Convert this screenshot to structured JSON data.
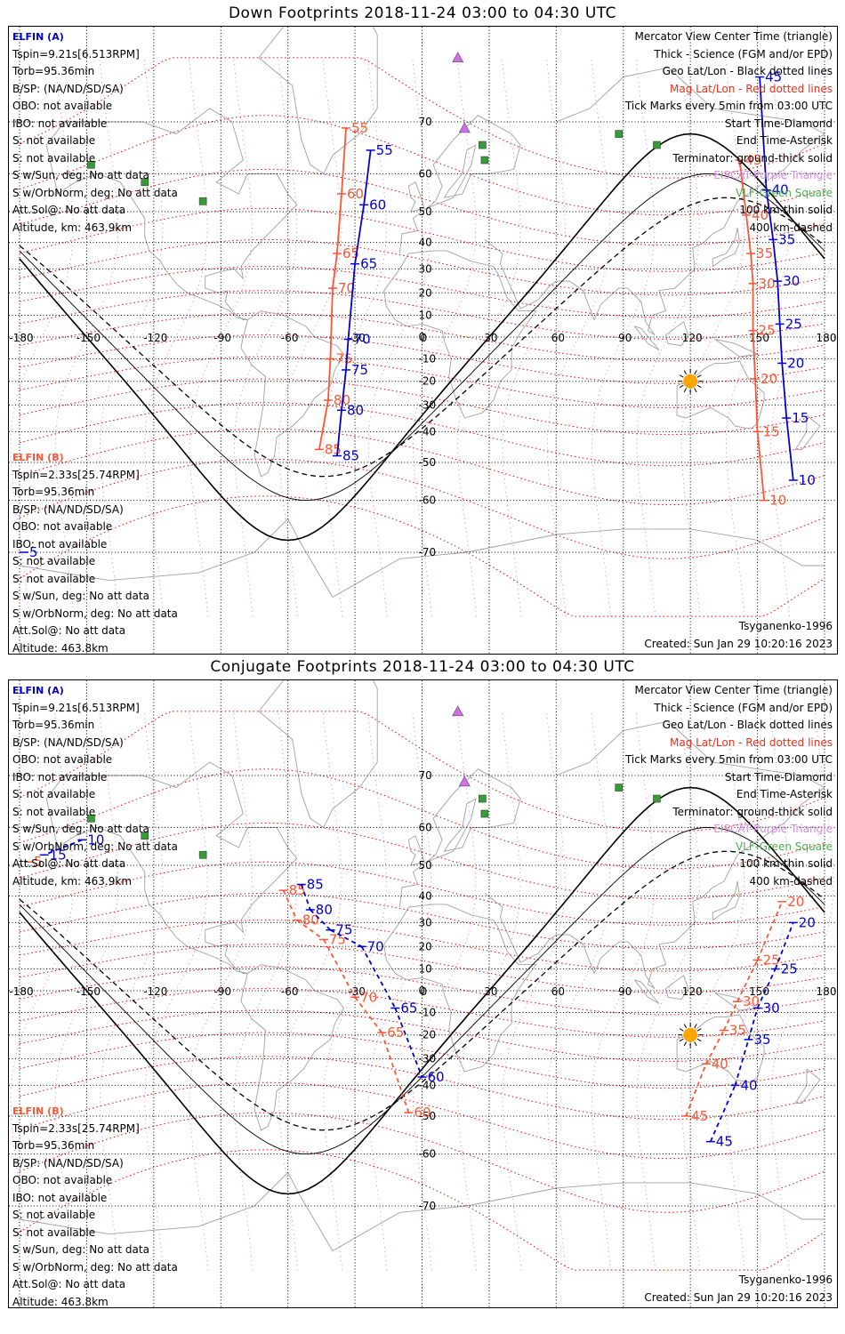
{
  "panels": [
    {
      "title": "Down Footprints 2018-11-24 03:00 to 04:30 UTC",
      "elfin_a": {
        "header": "ELFIN (A)",
        "lines": [
          "Tspin=9.21s[6.513RPM]",
          "Torb=95.36min",
          "B/SP: (NA/ND/SD/SA)",
          "OBO: not available",
          "IBO: not available",
          "S: not available",
          "S: not available",
          "S w/Sun, deg: No att data",
          "S w/OrbNorm, deg: No att data",
          "Att.Sol@: No att data",
          "Altitude, km: 463.9km"
        ]
      },
      "elfin_b": {
        "header": "ELFIN (B)",
        "lines": [
          "Tspin=2.33s[25.74RPM]",
          "Torb=95.36min",
          "B/SP: (NA/ND/SD/SA)",
          "OBO: not available",
          "IBO: not available",
          "S: not available",
          "S: not available",
          "S w/Sun, deg: No att data",
          "S w/OrbNorm, deg: No att data",
          "Att.Sol@: No att data",
          "Altitude: 463.8km"
        ]
      },
      "model": "Tsyganenko-1996",
      "created": "Created: Sun Jan 29 10:20:16 2023"
    },
    {
      "title": "Conjugate Footprints 2018-11-24 03:00 to 04:30 UTC",
      "elfin_a": {
        "header": "ELFIN (A)",
        "lines": [
          "Tspin=9.21s[6.513RPM]",
          "Torb=95.36min",
          "B/SP: (NA/ND/SD/SA)",
          "OBO: not available",
          "IBO: not available",
          "S: not available",
          "S: not available",
          "S w/Sun, deg: No att data",
          "S w/OrbNorm, deg: No att data",
          "Att.Sol@: No att data",
          "Altitude, km: 463.9km"
        ]
      },
      "elfin_b": {
        "header": "ELFIN (B)",
        "lines": [
          "Tspin=2.33s[25.74RPM]",
          "Torb=95.36min",
          "B/SP: (NA/ND/SD/SA)",
          "OBO: not available",
          "IBO: not available",
          "S: not available",
          "S: not available",
          "S w/Sun, deg: No att data",
          "S w/OrbNorm, deg: No att data",
          "Att.Sol@: No att data",
          "Altitude: 463.8km"
        ]
      },
      "model": "Tsyganenko-1996",
      "created": "Created: Sun Jan 29 10:20:16 2023"
    }
  ],
  "legend": [
    {
      "text": "Mercator View Center Time (triangle)",
      "color": "#000000"
    },
    {
      "text": "Thick - Science (FGM and/or EPD)",
      "color": "#000000"
    },
    {
      "text": "Geo Lat/Lon - Black dotted lines",
      "color": "#000000"
    },
    {
      "text": "Mag Lat/Lon - Red dotted lines",
      "color": "#e8321e"
    },
    {
      "text": "Tick Marks every 5min from 03:00 UTC",
      "color": "#000000"
    },
    {
      "text": "Start Time-Diamond",
      "color": "#000000"
    },
    {
      "text": "End Time-Asterisk",
      "color": "#000000"
    },
    {
      "text": "Terminator: ground-thick solid",
      "color": "#000000"
    },
    {
      "text": "EISCAT-Purple Triangle",
      "color": "#d68ee0"
    },
    {
      "text": "VLF-Green Square",
      "color": "#4caf50"
    },
    {
      "text": "100 km-thin solid",
      "color": "#000000"
    },
    {
      "text": "400 km-dashed",
      "color": "#000000"
    }
  ],
  "colors": {
    "elfin_a": "#0000d0",
    "elfin_b": "#ff5533",
    "geo_grid": "#000000",
    "mag_grid": "#ff0000",
    "eiscat": "#d070e0",
    "vlf": "#3a9a3a",
    "sun": "#ffa500",
    "coast": "#a0a0a0"
  },
  "map": {
    "lon_ticks": [
      "-180",
      "-150",
      "-120",
      "-90",
      "-60",
      "-30",
      "0",
      "30",
      "60",
      "90",
      "120",
      "150",
      "180"
    ],
    "lat_ticks": [
      "70",
      "60",
      "50",
      "40",
      "30",
      "20",
      "10",
      "0",
      "-10",
      "-20",
      "-30",
      "-40",
      "-50",
      "-60",
      "-70"
    ],
    "projection": "mercator",
    "lon_range": [
      -180,
      180
    ]
  },
  "tracks": [
    {
      "a_ticks": [
        {
          "label": "55",
          "lon": -23,
          "lat": 65
        },
        {
          "label": "60",
          "lon": -26,
          "lat": 52
        },
        {
          "label": "65",
          "lon": -30,
          "lat": 32
        },
        {
          "label": "70",
          "lon": -33,
          "lat": -1
        },
        {
          "label": "75",
          "lon": -34,
          "lat": -15
        },
        {
          "label": "80",
          "lon": -36,
          "lat": -32
        },
        {
          "label": "85",
          "lon": -38,
          "lat": -48
        },
        {
          "label": "45",
          "lon": 151,
          "lat": 76
        },
        {
          "label": "40",
          "lon": 154,
          "lat": 56
        },
        {
          "label": "35",
          "lon": 157,
          "lat": 41
        },
        {
          "label": "30",
          "lon": 159,
          "lat": 25
        },
        {
          "label": "25",
          "lon": 160,
          "lat": 6
        },
        {
          "label": "20",
          "lon": 161,
          "lat": -12
        },
        {
          "label": "15",
          "lon": 163,
          "lat": -35
        },
        {
          "label": "10",
          "lon": 166,
          "lat": -55
        },
        {
          "label": "5",
          "lon": -178,
          "lat": -70
        }
      ],
      "b_ticks": [
        {
          "label": "55",
          "lon": -34,
          "lat": 69
        },
        {
          "label": "60",
          "lon": -36,
          "lat": 55
        },
        {
          "label": "65",
          "lon": -38,
          "lat": 36
        },
        {
          "label": "70",
          "lon": -40,
          "lat": 22
        },
        {
          "label": "75",
          "lon": -41,
          "lat": -10
        },
        {
          "label": "80",
          "lon": -42,
          "lat": -28
        },
        {
          "label": "85",
          "lon": -46,
          "lat": -46
        },
        {
          "label": "45",
          "lon": 142,
          "lat": 63
        },
        {
          "label": "40",
          "lon": 145,
          "lat": 49
        },
        {
          "label": "35",
          "lon": 147,
          "lat": 36
        },
        {
          "label": "30",
          "lon": 148,
          "lat": 24
        },
        {
          "label": "25",
          "lon": 148,
          "lat": 3
        },
        {
          "label": "20",
          "lon": 149,
          "lat": -19
        },
        {
          "label": "15",
          "lon": 150,
          "lat": -40
        },
        {
          "label": "10",
          "lon": 153,
          "lat": -60
        }
      ]
    },
    {
      "a_ticks": [
        {
          "label": "10",
          "lon": -152,
          "lat": 57
        },
        {
          "label": "15",
          "lon": -169,
          "lat": 53
        },
        {
          "label": "85",
          "lon": -54,
          "lat": 44
        },
        {
          "label": "80",
          "lon": -50,
          "lat": 35
        },
        {
          "label": "75",
          "lon": -41,
          "lat": 27
        },
        {
          "label": "70",
          "lon": -27,
          "lat": 20
        },
        {
          "label": "65",
          "lon": -12,
          "lat": -8
        },
        {
          "label": "60",
          "lon": 0,
          "lat": -37
        },
        {
          "label": "45",
          "lon": 129,
          "lat": -57
        },
        {
          "label": "40",
          "lon": 140,
          "lat": -40
        },
        {
          "label": "35",
          "lon": 146,
          "lat": -22
        },
        {
          "label": "30",
          "lon": 150,
          "lat": -8
        },
        {
          "label": "25",
          "lon": 158,
          "lat": 10
        },
        {
          "label": "20",
          "lon": 166,
          "lat": 30
        }
      ],
      "b_ticks": [
        {
          "label": "5",
          "lon": -176,
          "lat": 51
        },
        {
          "label": "85",
          "lon": -62,
          "lat": 42
        },
        {
          "label": "80",
          "lon": -56,
          "lat": 31
        },
        {
          "label": "75",
          "lon": -44,
          "lat": 23
        },
        {
          "label": "70",
          "lon": -30,
          "lat": -3
        },
        {
          "label": "65",
          "lon": -18,
          "lat": -19
        },
        {
          "label": "60",
          "lon": -6,
          "lat": -49
        },
        {
          "label": "45",
          "lon": 118,
          "lat": -50
        },
        {
          "label": "40",
          "lon": 127,
          "lat": -32
        },
        {
          "label": "35",
          "lon": 135,
          "lat": -18
        },
        {
          "label": "30",
          "lon": 141,
          "lat": -5
        },
        {
          "label": "25",
          "lon": 150,
          "lat": 14
        },
        {
          "label": "20",
          "lon": 161,
          "lat": 38
        }
      ]
    }
  ]
}
